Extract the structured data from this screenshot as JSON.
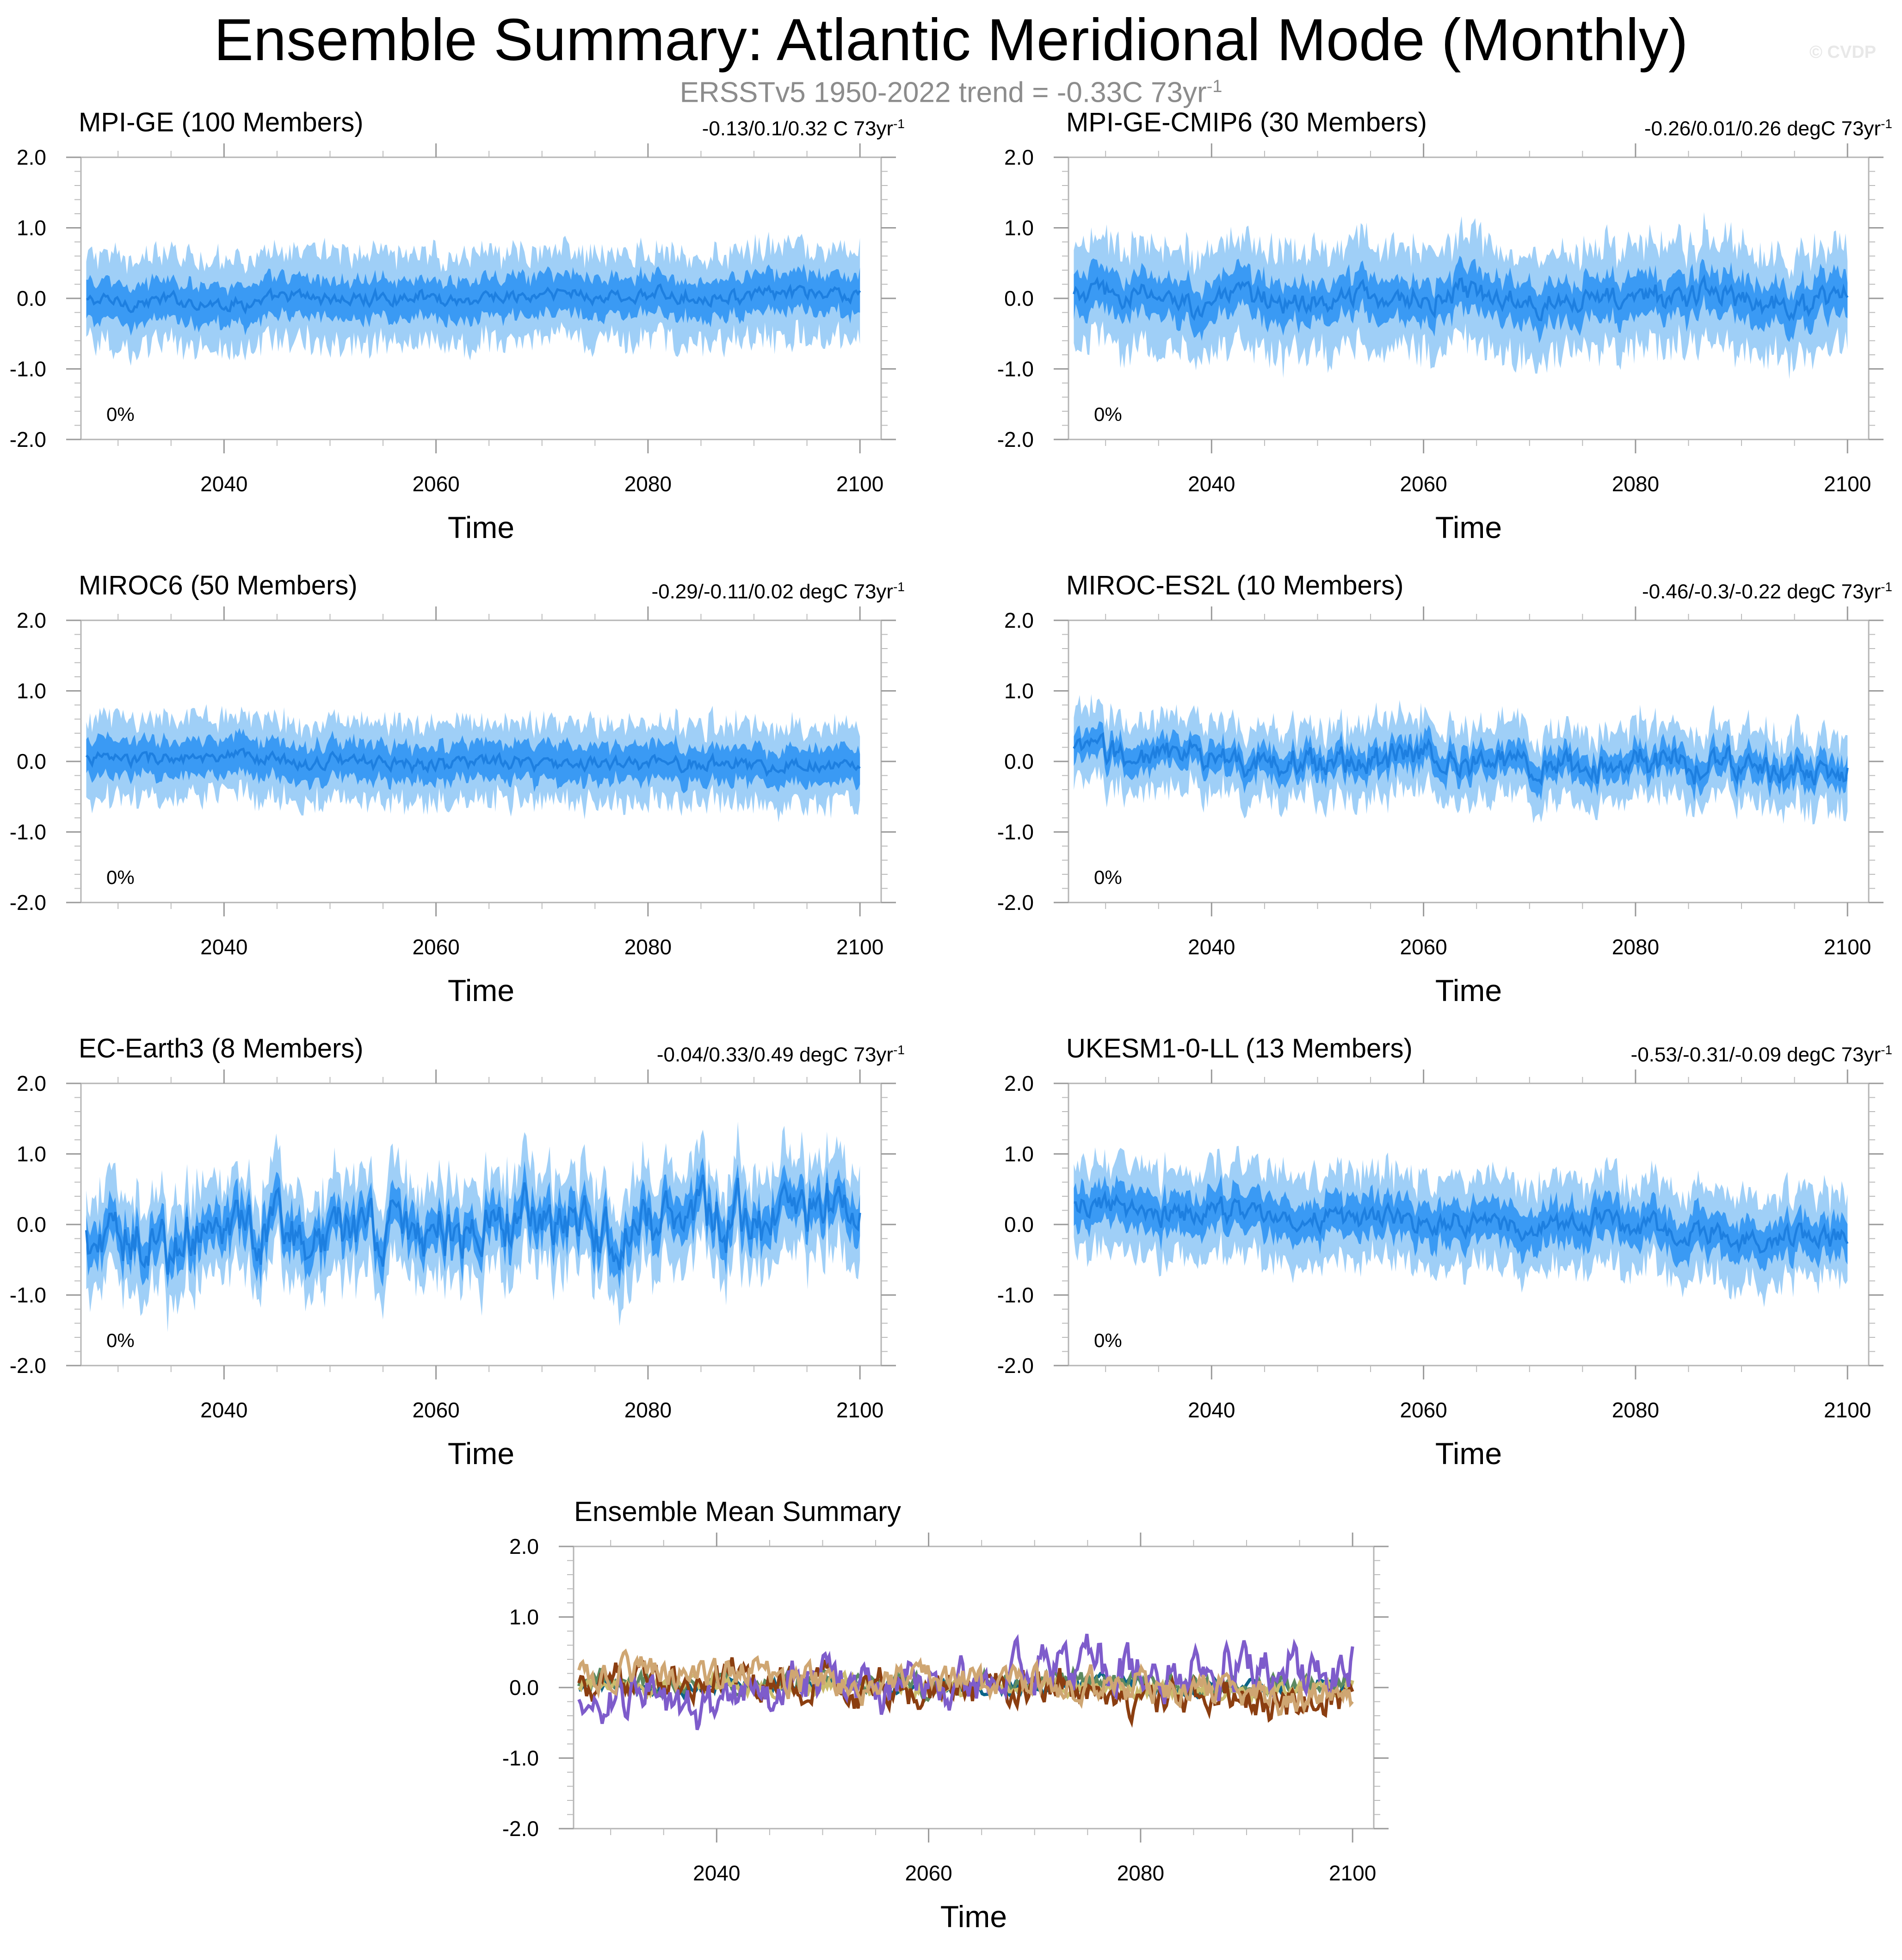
{
  "header": {
    "title": "Ensemble Summary: Atlantic Meridional Mode (Monthly)",
    "subtitle_prefix": "ERSSTv5 1950-2022 trend = -0.33C 73yr",
    "subtitle_sup": "-1",
    "credit": "© CVDP"
  },
  "colors": {
    "band_outer": "#9fcff7",
    "band_inner": "#3a9af4",
    "mean_line": "#1d7fe0"
  },
  "chart_data": [
    {
      "type": "area",
      "title": "MPI-GE (100 Members)",
      "title_color": "#0a6488",
      "trend_label": "-0.13/0.1/0.32 C 73yr",
      "trend_sup": "-1",
      "percent_label": "0%",
      "xlabel": "Time",
      "xticks": [
        2040,
        2060,
        2080,
        2100
      ],
      "xlim": [
        2026.5,
        2102
      ],
      "yticks": [
        "2.0",
        "1.0",
        "0.0",
        "-1.0",
        "-2.0"
      ],
      "ylim": [
        -2.0,
        2.0
      ],
      "x_start": 2027,
      "x_end": 2100,
      "mean_start": -0.05,
      "mean_end": 0.05,
      "noise": 0.07,
      "inner_halfwidth": 0.3,
      "outer_halfwidth": 0.62
    },
    {
      "type": "area",
      "title": "MPI-GE-CMIP6 (30 Members)",
      "title_color": "#5c8a60",
      "trend_label": "-0.26/0.01/0.26 degC 73yr",
      "trend_sup": "-1",
      "percent_label": "0%",
      "xlabel": "Time",
      "xticks": [
        2040,
        2060,
        2080,
        2100
      ],
      "xlim": [
        2026.5,
        2102
      ],
      "yticks": [
        "2.0",
        "1.0",
        "0.0",
        "-1.0",
        "-2.0"
      ],
      "ylim": [
        -2.0,
        2.0
      ],
      "x_start": 2027,
      "x_end": 2100,
      "mean_start": 0.0,
      "mean_end": 0.02,
      "noise": 0.12,
      "inner_halfwidth": 0.32,
      "outer_halfwidth": 0.72
    },
    {
      "type": "area",
      "title": "MIROC6 (50 Members)",
      "title_color": "#cbbd6e",
      "trend_label": "-0.29/-0.11/0.02 degC 73yr",
      "trend_sup": "-1",
      "percent_label": "0%",
      "xlabel": "Time",
      "xticks": [
        2040,
        2060,
        2080,
        2100
      ],
      "xlim": [
        2026.5,
        2102
      ],
      "yticks": [
        "2.0",
        "1.0",
        "0.0",
        "-1.0",
        "-2.0"
      ],
      "ylim": [
        -2.0,
        2.0
      ],
      "x_start": 2027,
      "x_end": 2100,
      "mean_start": 0.05,
      "mean_end": -0.06,
      "noise": 0.07,
      "inner_halfwidth": 0.28,
      "outer_halfwidth": 0.55
    },
    {
      "type": "area",
      "title": "MIROC-ES2L (10 Members)",
      "title_color": "#8b3e10",
      "trend_label": "-0.46/-0.3/-0.22 degC 73yr",
      "trend_sup": "-1",
      "percent_label": "0%",
      "xlabel": "Time",
      "xticks": [
        2040,
        2060,
        2080,
        2100
      ],
      "xlim": [
        2026.5,
        2102
      ],
      "yticks": [
        "2.0",
        "1.0",
        "0.0",
        "-1.0",
        "-2.0"
      ],
      "ylim": [
        -2.0,
        2.0
      ],
      "x_start": 2027,
      "x_end": 2100,
      "mean_start": 0.12,
      "mean_end": -0.15,
      "noise": 0.14,
      "inner_halfwidth": 0.22,
      "outer_halfwidth": 0.5
    },
    {
      "type": "area",
      "title": "EC-Earth3 (8 Members)",
      "title_color": "#7e5ccb",
      "trend_label": "-0.04/0.33/0.49 degC 73yr",
      "trend_sup": "-1",
      "percent_label": "0%",
      "xlabel": "Time",
      "xticks": [
        2040,
        2060,
        2080,
        2100
      ],
      "xlim": [
        2026.5,
        2102
      ],
      "yticks": [
        "2.0",
        "1.0",
        "0.0",
        "-1.0",
        "-2.0"
      ],
      "ylim": [
        -2.0,
        2.0
      ],
      "x_start": 2027,
      "x_end": 2100,
      "mean_start": -0.2,
      "mean_end": 0.25,
      "noise": 0.28,
      "inner_halfwidth": 0.3,
      "outer_halfwidth": 0.65
    },
    {
      "type": "area",
      "title": "UKESM1-0-LL (13 Members)",
      "title_color": "#cfa672",
      "trend_label": "-0.53/-0.31/-0.09 degC 73yr",
      "trend_sup": "-1",
      "percent_label": "0%",
      "xlabel": "Time",
      "xticks": [
        2040,
        2060,
        2080,
        2100
      ],
      "xlim": [
        2026.5,
        2102
      ],
      "yticks": [
        "2.0",
        "1.0",
        "0.0",
        "-1.0",
        "-2.0"
      ],
      "ylim": [
        -2.0,
        2.0
      ],
      "x_start": 2027,
      "x_end": 2100,
      "mean_start": 0.2,
      "mean_end": -0.15,
      "noise": 0.12,
      "inner_halfwidth": 0.3,
      "outer_halfwidth": 0.62
    },
    {
      "type": "line",
      "title": "Ensemble Mean Summary",
      "title_color": "#000000",
      "xlabel": "Time",
      "xticks": [
        2040,
        2060,
        2080,
        2100
      ],
      "xlim": [
        2026.5,
        2102
      ],
      "yticks": [
        "2.0",
        "1.0",
        "0.0",
        "-1.0",
        "-2.0"
      ],
      "ylim": [
        -2.0,
        2.0
      ],
      "x_start": 2027,
      "x_end": 2100,
      "series": [
        {
          "color": "#0a6488",
          "amp": 0.07,
          "start": 0.0,
          "end": 0.05
        },
        {
          "color": "#5c8a60",
          "amp": 0.1,
          "start": 0.05,
          "end": 0.03
        },
        {
          "color": "#cbbd6e",
          "amp": 0.08,
          "start": 0.05,
          "end": -0.05
        },
        {
          "color": "#8b3e10",
          "amp": 0.17,
          "start": 0.12,
          "end": -0.15
        },
        {
          "color": "#7e5ccb",
          "amp": 0.24,
          "start": -0.15,
          "end": 0.3
        },
        {
          "color": "#cfa672",
          "amp": 0.15,
          "start": 0.22,
          "end": -0.12
        }
      ]
    }
  ]
}
